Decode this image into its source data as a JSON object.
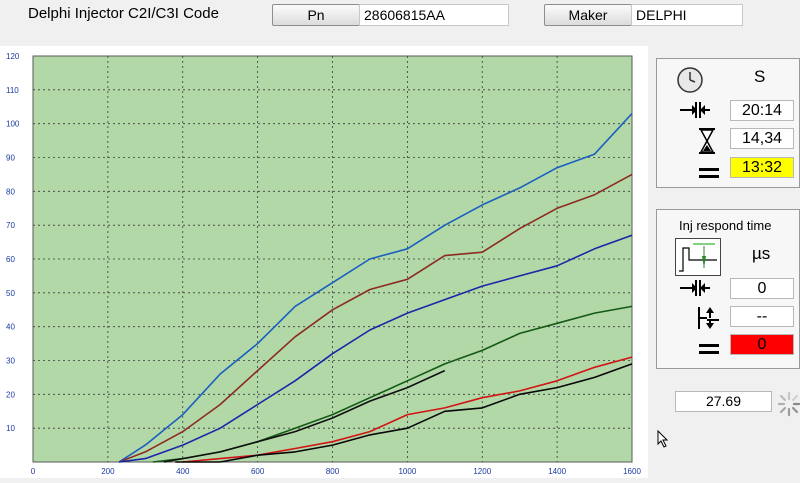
{
  "header": {
    "title": "Delphi Injector C2I/C3I Code",
    "pn_label": "Pn",
    "pn_value": "28606815AA",
    "maker_label": "Maker",
    "maker_value": "DELPHI"
  },
  "timer_panel": {
    "unit": "S",
    "elapsed": "20:14",
    "hourglass_value": "14,34",
    "total": "13:32",
    "total_bg": "#ffff00"
  },
  "respond_panel": {
    "title": "Inj respond time",
    "unit": "µs",
    "measured": "0",
    "interval": "--",
    "result": "0",
    "result_bg": "#ff0000"
  },
  "bottom_readout": "27.69",
  "chart_data": {
    "type": "line",
    "xlim": [
      0,
      1600
    ],
    "ylim": [
      0,
      120
    ],
    "x_ticks": [
      "0",
      "200",
      "400",
      "600",
      "800",
      "1000",
      "1200",
      "1400",
      "1600"
    ],
    "y_ticks": [
      "10",
      "20",
      "30",
      "40",
      "50",
      "60",
      "70",
      "80",
      "90",
      "100",
      "110",
      "120"
    ],
    "grid": true,
    "plot_bg": "#b2d8a8",
    "series": [
      {
        "color": "#1a5fc0",
        "points": [
          [
            230,
            0
          ],
          [
            300,
            5
          ],
          [
            400,
            14
          ],
          [
            500,
            26
          ],
          [
            600,
            35
          ],
          [
            700,
            46
          ],
          [
            800,
            53
          ],
          [
            900,
            60
          ],
          [
            1000,
            63
          ],
          [
            1100,
            70
          ],
          [
            1200,
            76
          ],
          [
            1300,
            81
          ],
          [
            1400,
            87
          ],
          [
            1500,
            91
          ],
          [
            1600,
            103
          ]
        ]
      },
      {
        "color": "#8b2c22",
        "points": [
          [
            230,
            0
          ],
          [
            300,
            3
          ],
          [
            400,
            9
          ],
          [
            500,
            17
          ],
          [
            600,
            27
          ],
          [
            700,
            37
          ],
          [
            800,
            45
          ],
          [
            900,
            51
          ],
          [
            1000,
            54
          ],
          [
            1100,
            61
          ],
          [
            1200,
            62
          ],
          [
            1300,
            69
          ],
          [
            1400,
            75
          ],
          [
            1500,
            79
          ],
          [
            1600,
            85
          ]
        ]
      },
      {
        "color": "#1728a8",
        "points": [
          [
            230,
            0
          ],
          [
            300,
            1
          ],
          [
            400,
            5
          ],
          [
            500,
            10
          ],
          [
            600,
            17
          ],
          [
            700,
            24
          ],
          [
            800,
            32
          ],
          [
            900,
            39
          ],
          [
            1000,
            44
          ],
          [
            1100,
            48
          ],
          [
            1200,
            52
          ],
          [
            1300,
            55
          ],
          [
            1400,
            58
          ],
          [
            1500,
            63
          ],
          [
            1600,
            67
          ]
        ]
      },
      {
        "color": "#145a14",
        "points": [
          [
            320,
            0
          ],
          [
            400,
            1
          ],
          [
            500,
            3
          ],
          [
            600,
            6
          ],
          [
            700,
            10
          ],
          [
            800,
            14
          ],
          [
            900,
            19
          ],
          [
            1000,
            24
          ],
          [
            1100,
            29
          ],
          [
            1200,
            33
          ],
          [
            1300,
            38
          ],
          [
            1400,
            41
          ],
          [
            1500,
            44
          ],
          [
            1600,
            46
          ]
        ]
      },
      {
        "color": "#101010",
        "points": [
          [
            350,
            0
          ],
          [
            400,
            1
          ],
          [
            500,
            3
          ],
          [
            600,
            6
          ],
          [
            700,
            9
          ],
          [
            800,
            13
          ],
          [
            900,
            18
          ],
          [
            1000,
            22
          ],
          [
            1100,
            27
          ]
        ]
      },
      {
        "color": "#d21414",
        "points": [
          [
            400,
            0
          ],
          [
            500,
            1
          ],
          [
            600,
            2
          ],
          [
            700,
            4
          ],
          [
            800,
            6
          ],
          [
            900,
            9
          ],
          [
            1000,
            14
          ],
          [
            1100,
            16
          ],
          [
            1200,
            19
          ],
          [
            1300,
            21
          ],
          [
            1400,
            24
          ],
          [
            1500,
            28
          ],
          [
            1600,
            31
          ]
        ]
      },
      {
        "color": "#080808",
        "points": [
          [
            380,
            0
          ],
          [
            500,
            0
          ],
          [
            600,
            2
          ],
          [
            700,
            3
          ],
          [
            800,
            5
          ],
          [
            900,
            8
          ],
          [
            1000,
            10
          ],
          [
            1100,
            15
          ],
          [
            1200,
            16
          ],
          [
            1300,
            20
          ],
          [
            1400,
            22
          ],
          [
            1500,
            25
          ],
          [
            1600,
            29
          ]
        ]
      }
    ]
  }
}
